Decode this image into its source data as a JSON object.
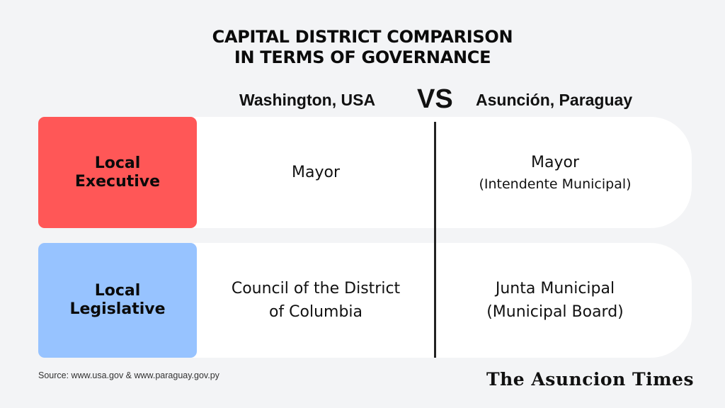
{
  "title": {
    "line1": "CAPITAL DISTRICT COMPARISON",
    "line2": "IN TERMS OF GOVERNANCE"
  },
  "columns": {
    "left": "Washington, USA",
    "vs": "VS",
    "right": "Asunción, Paraguay"
  },
  "rows": [
    {
      "label_line1": "Local",
      "label_line2": "Executive",
      "label_color": "#ff5757",
      "left_line1": "Mayor",
      "right_line1": "Mayor",
      "right_line2": "(Intendente Municipal)"
    },
    {
      "label_line1": "Local",
      "label_line2": "Legislative",
      "label_color": "#97c3ff",
      "left_line1": "Council of the District",
      "left_line2": "of Columbia",
      "right_line1": "Junta Municipal",
      "right_line2": "(Municipal Board)"
    }
  ],
  "footer": {
    "source": "Source: www.usa.gov & www.paraguay.gov.py",
    "brand": "The Asuncion Times"
  },
  "colors": {
    "background": "#f3f4f6",
    "panel": "#ffffff",
    "executive": "#ff5757",
    "legislative": "#97c3ff",
    "divider": "#222222"
  }
}
